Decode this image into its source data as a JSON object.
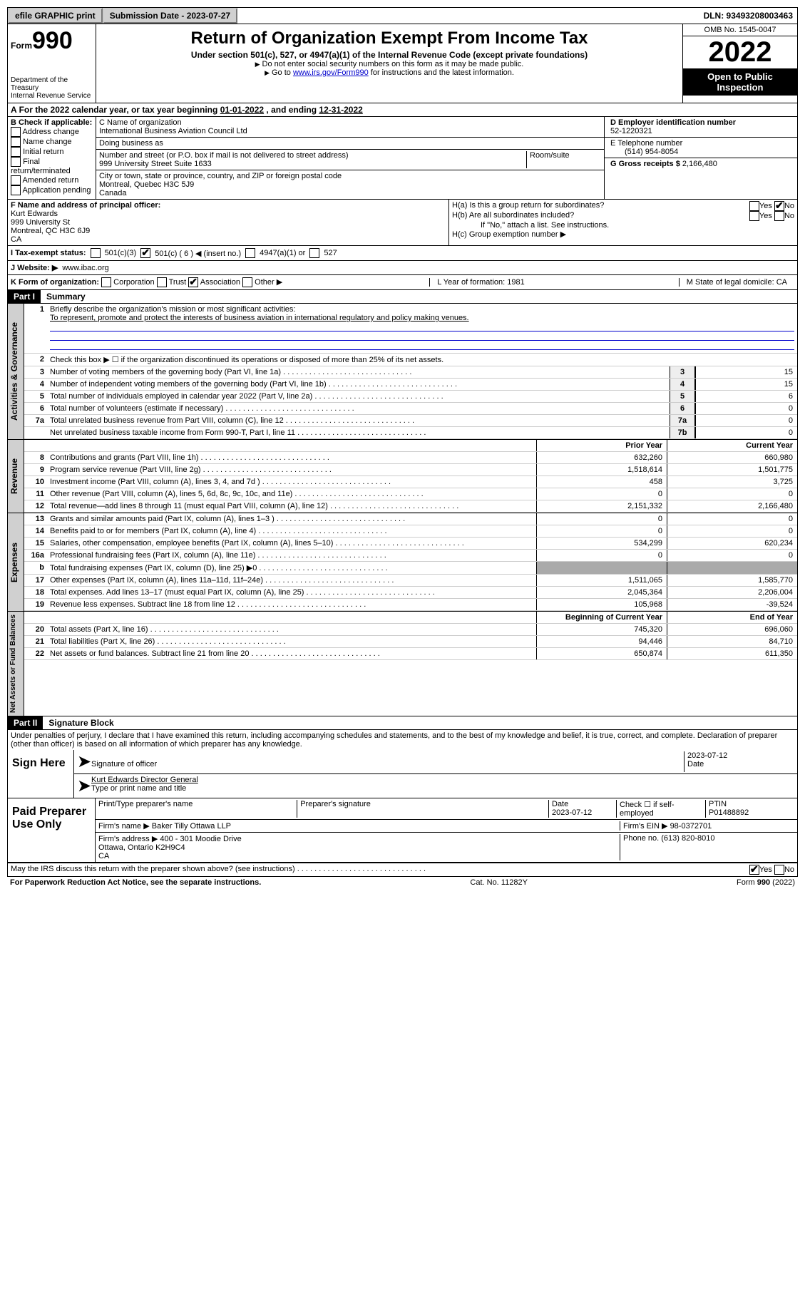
{
  "topbar": {
    "efile": "efile GRAPHIC print",
    "submission": "Submission Date - 2023-07-27",
    "dln": "DLN: 93493208003463"
  },
  "header": {
    "form_prefix": "Form",
    "form_num": "990",
    "title": "Return of Organization Exempt From Income Tax",
    "subtitle": "Under section 501(c), 527, or 4947(a)(1) of the Internal Revenue Code (except private foundations)",
    "note1": "Do not enter social security numbers on this form as it may be made public.",
    "note2_pre": "Go to ",
    "note2_link": "www.irs.gov/Form990",
    "note2_post": " for instructions and the latest information.",
    "dept": "Department of the Treasury\nInternal Revenue Service",
    "omb": "OMB No. 1545-0047",
    "year": "2022",
    "open": "Open to Public Inspection"
  },
  "rowA": {
    "text_pre": "For the 2022 calendar year, or tax year beginning ",
    "begin": "01-01-2022",
    "mid": " , and ending ",
    "end": "12-31-2022"
  },
  "boxB": {
    "title": "B Check if applicable:",
    "items": [
      "Address change",
      "Name change",
      "Initial return",
      "Final return/terminated",
      "Amended return",
      "Application pending"
    ]
  },
  "boxC": {
    "name_label": "C Name of organization",
    "name": "International Business Aviation Council Ltd",
    "dba_label": "Doing business as",
    "dba": "",
    "street_label": "Number and street (or P.O. box if mail is not delivered to street address)",
    "room_label": "Room/suite",
    "street": "999 University Street Suite 1633",
    "city_label": "City or town, state or province, country, and ZIP or foreign postal code",
    "city": "Montreal, Quebec  H3C 5J9\nCanada"
  },
  "boxD": {
    "label": "D Employer identification number",
    "value": "52-1220321"
  },
  "boxE": {
    "label": "E Telephone number",
    "value": "(514) 954-8054"
  },
  "boxG": {
    "label": "G Gross receipts $",
    "value": "2,166,480"
  },
  "boxF": {
    "label": "F Name and address of principal officer:",
    "name": "Kurt Edwards",
    "addr1": "999 University St",
    "addr2": "Montreal, QC  H3C 6J9",
    "addr3": "CA"
  },
  "boxH": {
    "ha": "H(a)  Is this a group return for subordinates?",
    "hb": "H(b)  Are all subordinates included?",
    "hb_note": "If \"No,\" attach a list. See instructions.",
    "hc": "H(c)  Group exemption number ▶"
  },
  "rowI": {
    "label": "I  Tax-exempt status:",
    "c3": "501(c)(3)",
    "c_other": "501(c) ( 6 ) ◀ (insert no.)",
    "a4947": "4947(a)(1) or",
    "s527": "527"
  },
  "rowJ": {
    "label": "J  Website: ▶",
    "value": "www.ibac.org"
  },
  "rowK": {
    "label": "K Form of organization:",
    "opts": [
      "Corporation",
      "Trust",
      "Association",
      "Other ▶"
    ],
    "checked": 2,
    "L": "L Year of formation: 1981",
    "M": "M State of legal domicile: CA"
  },
  "part1": {
    "hdr": "Part I",
    "title": "Summary",
    "line1_label": "Briefly describe the organization's mission or most significant activities:",
    "line1_text": "To represent, promote and protect the interests of business aviation in international regulatory and policy making venues.",
    "line2": "Check this box ▶ ☐ if the organization discontinued its operations or disposed of more than 25% of its net assets.",
    "lines_gov": [
      {
        "n": "3",
        "d": "Number of voting members of the governing body (Part VI, line 1a)",
        "b": "3",
        "v": "15"
      },
      {
        "n": "4",
        "d": "Number of independent voting members of the governing body (Part VI, line 1b)",
        "b": "4",
        "v": "15"
      },
      {
        "n": "5",
        "d": "Total number of individuals employed in calendar year 2022 (Part V, line 2a)",
        "b": "5",
        "v": "6"
      },
      {
        "n": "6",
        "d": "Total number of volunteers (estimate if necessary)",
        "b": "6",
        "v": "0"
      },
      {
        "n": "7a",
        "d": "Total unrelated business revenue from Part VIII, column (C), line 12",
        "b": "7a",
        "v": "0"
      },
      {
        "n": "",
        "d": "Net unrelated business taxable income from Form 990-T, Part I, line 11",
        "b": "7b",
        "v": "0"
      }
    ],
    "col_hdr_prior": "Prior Year",
    "col_hdr_curr": "Current Year",
    "lines_rev": [
      {
        "n": "8",
        "d": "Contributions and grants (Part VIII, line 1h)",
        "p": "632,260",
        "c": "660,980"
      },
      {
        "n": "9",
        "d": "Program service revenue (Part VIII, line 2g)",
        "p": "1,518,614",
        "c": "1,501,775"
      },
      {
        "n": "10",
        "d": "Investment income (Part VIII, column (A), lines 3, 4, and 7d )",
        "p": "458",
        "c": "3,725"
      },
      {
        "n": "11",
        "d": "Other revenue (Part VIII, column (A), lines 5, 6d, 8c, 9c, 10c, and 11e)",
        "p": "0",
        "c": "0"
      },
      {
        "n": "12",
        "d": "Total revenue—add lines 8 through 11 (must equal Part VIII, column (A), line 12)",
        "p": "2,151,332",
        "c": "2,166,480"
      }
    ],
    "lines_exp": [
      {
        "n": "13",
        "d": "Grants and similar amounts paid (Part IX, column (A), lines 1–3 )",
        "p": "0",
        "c": "0"
      },
      {
        "n": "14",
        "d": "Benefits paid to or for members (Part IX, column (A), line 4)",
        "p": "0",
        "c": "0"
      },
      {
        "n": "15",
        "d": "Salaries, other compensation, employee benefits (Part IX, column (A), lines 5–10)",
        "p": "534,299",
        "c": "620,234"
      },
      {
        "n": "16a",
        "d": "Professional fundraising fees (Part IX, column (A), line 11e)",
        "p": "0",
        "c": "0"
      },
      {
        "n": "b",
        "d": "Total fundraising expenses (Part IX, column (D), line 25) ▶0",
        "p": "",
        "c": "",
        "gray": true
      },
      {
        "n": "17",
        "d": "Other expenses (Part IX, column (A), lines 11a–11d, 11f–24e)",
        "p": "1,511,065",
        "c": "1,585,770"
      },
      {
        "n": "18",
        "d": "Total expenses. Add lines 13–17 (must equal Part IX, column (A), line 25)",
        "p": "2,045,364",
        "c": "2,206,004"
      },
      {
        "n": "19",
        "d": "Revenue less expenses. Subtract line 18 from line 12",
        "p": "105,968",
        "c": "-39,524"
      }
    ],
    "col_hdr_beg": "Beginning of Current Year",
    "col_hdr_end": "End of Year",
    "lines_net": [
      {
        "n": "20",
        "d": "Total assets (Part X, line 16)",
        "p": "745,320",
        "c": "696,060"
      },
      {
        "n": "21",
        "d": "Total liabilities (Part X, line 26)",
        "p": "94,446",
        "c": "84,710"
      },
      {
        "n": "22",
        "d": "Net assets or fund balances. Subtract line 21 from line 20",
        "p": "650,874",
        "c": "611,350"
      }
    ],
    "vlabels": {
      "gov": "Activities & Governance",
      "rev": "Revenue",
      "exp": "Expenses",
      "net": "Net Assets or Fund Balances"
    }
  },
  "part2": {
    "hdr": "Part II",
    "title": "Signature Block",
    "perjury": "Under penalties of perjury, I declare that I have examined this return, including accompanying schedules and statements, and to the best of my knowledge and belief, it is true, correct, and complete. Declaration of preparer (other than officer) is based on all information of which preparer has any knowledge.",
    "sign_here": "Sign Here",
    "sig_officer": "Signature of officer",
    "sig_date": "2023-07-12",
    "date_label": "Date",
    "officer_name": "Kurt Edwards  Director General",
    "officer_type_label": "Type or print name and title",
    "paid_prep": "Paid Preparer Use Only",
    "prep_name_label": "Print/Type preparer's name",
    "prep_sig_label": "Preparer's signature",
    "prep_date": "2023-07-12",
    "prep_check": "Check ☐ if self-employed",
    "ptin_label": "PTIN",
    "ptin": "P01488892",
    "firm_name_label": "Firm's name    ▶",
    "firm_name": "Baker Tilly Ottawa LLP",
    "firm_ein_label": "Firm's EIN ▶",
    "firm_ein": "98-0372701",
    "firm_addr_label": "Firm's address ▶",
    "firm_addr": "400 - 301 Moodie Drive\nOttawa, Ontario  K2H9C4\nCA",
    "firm_phone_label": "Phone no.",
    "firm_phone": "(613) 820-8010",
    "may_irs": "May the IRS discuss this return with the preparer shown above? (see instructions)"
  },
  "footer": {
    "pra": "For Paperwork Reduction Act Notice, see the separate instructions.",
    "cat": "Cat. No. 11282Y",
    "form": "Form 990 (2022)"
  }
}
